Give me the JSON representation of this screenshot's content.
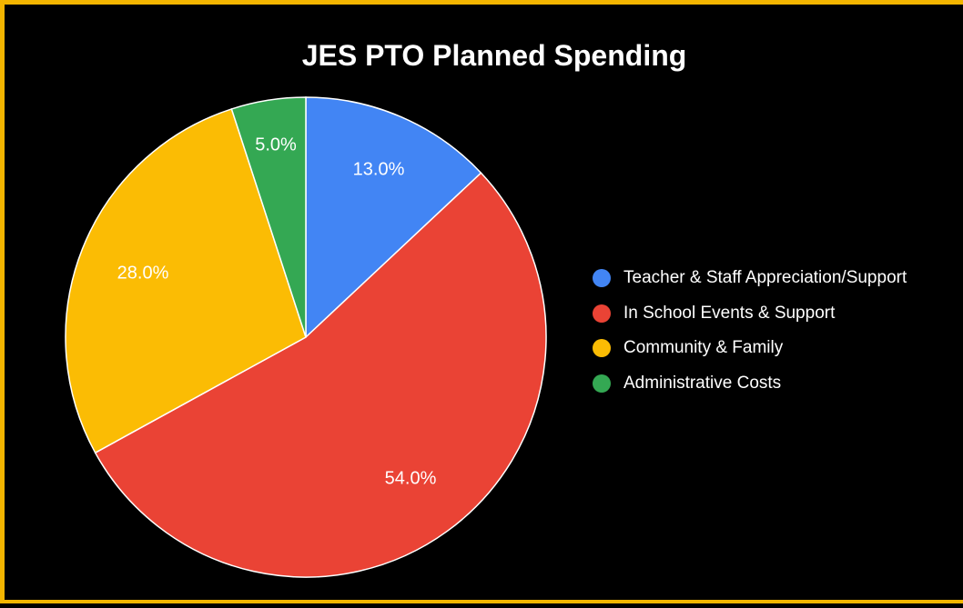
{
  "chart_data": {
    "type": "pie",
    "title": "JES PTO Planned Spending",
    "categories": [
      "Teacher & Staff Appreciation/Support",
      "In School Events & Support",
      "Community & Family",
      "Administrative Costs"
    ],
    "values": [
      13.0,
      54.0,
      28.0,
      5.0
    ],
    "labels": [
      "13.0%",
      "54.0%",
      "28.0%",
      "5.0%"
    ],
    "colors": [
      "#4285f4",
      "#ea4335",
      "#fbbc04",
      "#34a853"
    ],
    "legend_position": "right"
  },
  "theme": {
    "background": "#000000",
    "border": "#f3b500",
    "text": "#ffffff",
    "slice_stroke": "#ffffff"
  }
}
